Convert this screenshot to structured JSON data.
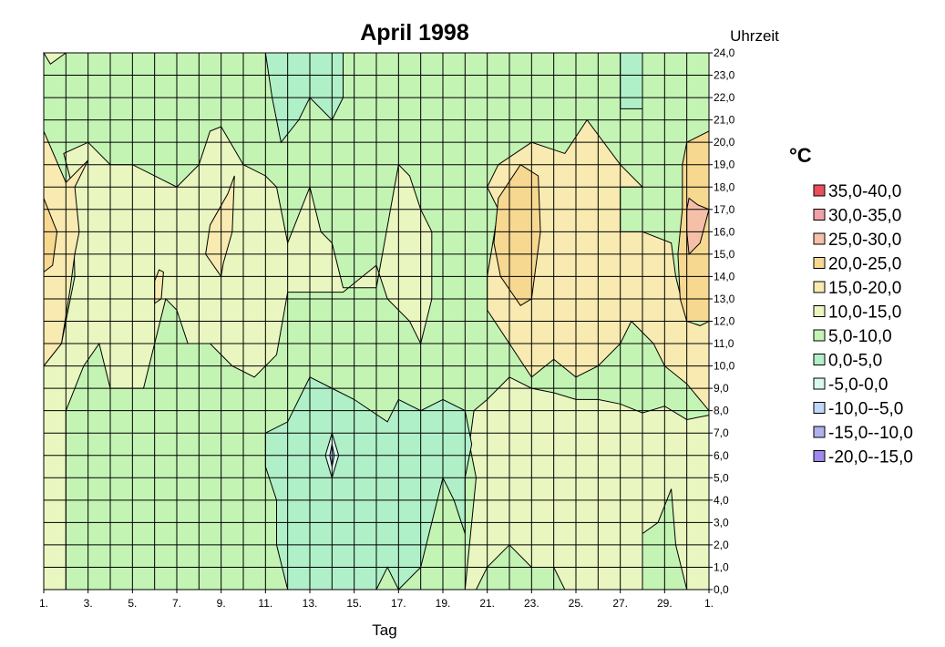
{
  "chart_data": {
    "type": "heatmap",
    "title": "April 1998",
    "xlabel": "Tag",
    "ylabel": "Uhrzeit",
    "x_tick_labels": [
      "1.",
      "3.",
      "5.",
      "7.",
      "9.",
      "11.",
      "13.",
      "15.",
      "17.",
      "19.",
      "21.",
      "23.",
      "25.",
      "27.",
      "29.",
      "1."
    ],
    "y_tick_labels": [
      "0,0",
      "1,0",
      "2,0",
      "3,0",
      "4,0",
      "5,0",
      "6,0",
      "7,0",
      "8,0",
      "9,0",
      "10,0",
      "11,0",
      "12,0",
      "13,0",
      "14,0",
      "15,0",
      "16,0",
      "17,0",
      "18,0",
      "19,0",
      "20,0",
      "21,0",
      "22,0",
      "23,0",
      "24,0"
    ],
    "xlim": [
      1,
      31
    ],
    "ylim": [
      0,
      24
    ],
    "grid": true,
    "legend_title": "°C",
    "legend_position": "right",
    "legend": [
      {
        "label": "35,0-40,0",
        "color": "#e8505a"
      },
      {
        "label": "30,0-35,0",
        "color": "#f0a0a8"
      },
      {
        "label": "25,0-30,0",
        "color": "#f6c0a8"
      },
      {
        "label": "20,0-25,0",
        "color": "#f6d890"
      },
      {
        "label": "15,0-20,0",
        "color": "#f8eab0"
      },
      {
        "label": "10,0-15,0",
        "color": "#eaf6c0"
      },
      {
        "label": "5,0-10,0",
        "color": "#c4f4b4"
      },
      {
        "label": "0,0-5,0",
        "color": "#b0f0c8"
      },
      {
        "label": "-5,0-0,0",
        "color": "#d8f8f0"
      },
      {
        "label": "-10,0--5,0",
        "color": "#c0d8f8"
      },
      {
        "label": "-15,0--10,0",
        "color": "#b0b0f0"
      },
      {
        "label": "-20,0--15,0",
        "color": "#a088f0"
      }
    ],
    "regions": [
      {
        "band": "15,0-20,0",
        "color": "#f8eab0",
        "points": [
          [
            1,
            10
          ],
          [
            1.8,
            11
          ],
          [
            2.2,
            13.5
          ],
          [
            2.4,
            15
          ],
          [
            2.6,
            16
          ],
          [
            2.4,
            18
          ],
          [
            3,
            19.2
          ],
          [
            2,
            18.2
          ],
          [
            1,
            20.5
          ]
        ]
      },
      {
        "band": "20,0-25,0",
        "color": "#f6d890",
        "points": [
          [
            1,
            17.5
          ],
          [
            1.6,
            16
          ],
          [
            1.4,
            14.5
          ],
          [
            1,
            14.2
          ]
        ]
      },
      {
        "band": "15,0-20,0",
        "color": "#f8eab0",
        "points": [
          [
            9,
            14
          ],
          [
            8.3,
            15
          ],
          [
            8.5,
            16.3
          ],
          [
            9.3,
            17.7
          ],
          [
            9.6,
            18.5
          ],
          [
            9.5,
            16
          ],
          [
            9.1,
            14.6
          ]
        ]
      },
      {
        "band": "15,0-20,0",
        "color": "#f8eab0",
        "points": [
          [
            6.2,
            14.3
          ],
          [
            6,
            13.8
          ],
          [
            6,
            12.8
          ],
          [
            6.3,
            13
          ],
          [
            6.4,
            14.2
          ]
        ]
      },
      {
        "band": "15,0-20,0",
        "color": "#f8eab0",
        "points": [
          [
            21,
            18
          ],
          [
            21.5,
            17
          ],
          [
            21,
            14
          ],
          [
            21,
            12.5
          ],
          [
            22,
            11
          ],
          [
            23,
            9.5
          ],
          [
            24,
            10.3
          ],
          [
            25,
            9.5
          ],
          [
            26,
            10
          ],
          [
            27,
            11
          ],
          [
            27.5,
            12
          ],
          [
            28.5,
            11
          ],
          [
            29,
            10
          ],
          [
            30,
            9.2
          ],
          [
            31,
            8
          ],
          [
            31,
            12
          ],
          [
            30.6,
            11.8
          ],
          [
            30,
            12
          ],
          [
            29.5,
            14
          ],
          [
            29.3,
            15.5
          ],
          [
            28,
            16
          ],
          [
            27,
            16
          ],
          [
            27,
            18
          ],
          [
            28,
            18
          ],
          [
            27,
            19
          ],
          [
            25.5,
            21
          ],
          [
            24.5,
            19.5
          ],
          [
            23,
            20
          ],
          [
            21.5,
            19
          ]
        ]
      },
      {
        "band": "20,0-25,0",
        "color": "#f6d890",
        "points": [
          [
            21.5,
            17.5
          ],
          [
            22.5,
            19
          ],
          [
            23.3,
            18.5
          ],
          [
            23.4,
            16
          ],
          [
            23,
            13
          ],
          [
            22.5,
            12.7
          ],
          [
            21.6,
            14
          ],
          [
            21.3,
            15.5
          ]
        ]
      },
      {
        "band": "20,0-25,0",
        "color": "#f6d890",
        "points": [
          [
            30,
            20
          ],
          [
            31,
            20.5
          ],
          [
            31,
            12
          ],
          [
            30,
            12
          ],
          [
            29.7,
            13
          ],
          [
            29.6,
            15
          ],
          [
            29.8,
            17
          ],
          [
            29.8,
            19
          ]
        ]
      },
      {
        "band": "25,0-30,0",
        "color": "#f6c0a8",
        "points": [
          [
            30.1,
            17.5
          ],
          [
            30.5,
            17.2
          ],
          [
            31,
            17
          ],
          [
            30.6,
            15.5
          ],
          [
            30.1,
            15
          ],
          [
            30,
            16
          ],
          [
            30,
            17
          ]
        ]
      },
      {
        "band": "0,0-5,0",
        "color": "#b0f0c8",
        "points": [
          [
            11,
            7
          ],
          [
            12,
            7.5
          ],
          [
            13,
            9.5
          ],
          [
            14,
            9
          ],
          [
            15,
            8.5
          ],
          [
            16.5,
            7.5
          ],
          [
            17,
            8.5
          ],
          [
            18,
            8
          ],
          [
            19,
            8.5
          ],
          [
            20,
            8
          ],
          [
            20.3,
            6.5
          ],
          [
            20,
            5
          ],
          [
            20,
            2.5
          ],
          [
            19.5,
            4
          ],
          [
            19,
            5
          ],
          [
            18.5,
            3
          ],
          [
            18,
            1
          ],
          [
            17,
            0
          ],
          [
            16.5,
            1
          ],
          [
            16,
            0
          ],
          [
            12,
            0
          ],
          [
            11.5,
            2
          ],
          [
            11.5,
            4
          ],
          [
            11,
            5.5
          ]
        ]
      },
      {
        "band": "0,0-5,0",
        "color": "#b0f0c8",
        "points": [
          [
            11.7,
            20
          ],
          [
            12.5,
            21
          ],
          [
            13,
            22
          ],
          [
            14,
            21
          ],
          [
            14.5,
            22
          ],
          [
            14.5,
            24
          ],
          [
            11,
            24
          ],
          [
            11.3,
            22
          ]
        ]
      },
      {
        "band": "0,0-5,0",
        "color": "#b0f0c8",
        "points": [
          [
            27,
            21.5
          ],
          [
            28,
            21.5
          ],
          [
            28,
            24
          ],
          [
            27,
            24
          ]
        ]
      },
      {
        "band": "-5,0-0,0",
        "color": "#d8f8f0",
        "points": [
          [
            14,
            7
          ],
          [
            14.3,
            6
          ],
          [
            14,
            5
          ],
          [
            13.7,
            6
          ]
        ]
      },
      {
        "band": "-10,0--5,0",
        "color": "#c0d8f8",
        "points": [
          [
            14,
            6.5
          ],
          [
            14.1,
            6
          ],
          [
            14,
            5.5
          ],
          [
            13.9,
            6
          ]
        ]
      }
    ]
  }
}
